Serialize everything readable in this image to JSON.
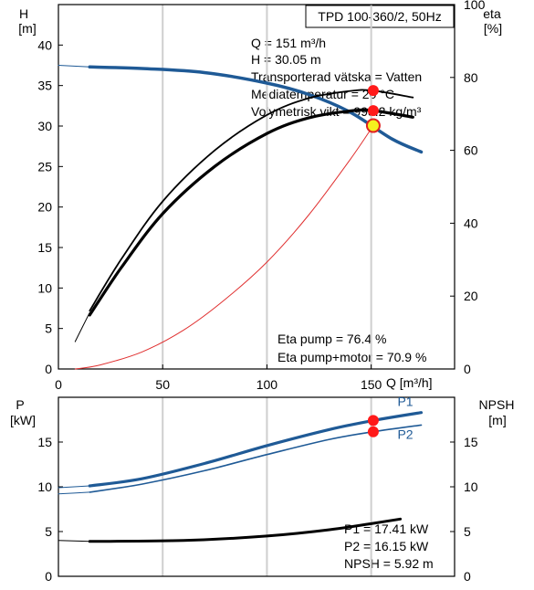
{
  "chart_data": [
    {
      "type": "line",
      "title": "TPD 100-360/2, 50Hz",
      "xlabel": "Q [m³/h]",
      "x_ticks": [
        "0",
        "50",
        "100",
        "150"
      ],
      "xlim": [
        0,
        190
      ],
      "left_axis": {
        "label": "H",
        "unit": "[m]",
        "ylim": [
          0,
          45
        ],
        "ticks": [
          "0",
          "5",
          "10",
          "15",
          "20",
          "25",
          "30",
          "35",
          "40"
        ]
      },
      "right_axis": {
        "label": "eta",
        "unit": "[%]",
        "ylim": [
          0,
          100
        ],
        "ticks": [
          "0",
          "20",
          "40",
          "60",
          "80",
          "100"
        ]
      },
      "grid": "vertical",
      "info_lines": [
        "Q = 151 m³/h",
        "H = 30.05 m",
        "Transporterad vätska = Vatten",
        "Mediatemperatur = 20 °C",
        "Volymetrisk vikt = 998.2 kg/m³"
      ],
      "eta_lines": [
        "Eta pump = 76.4 %",
        "Eta pump+motor = 70.9 %"
      ],
      "operating_point": {
        "Q": 151,
        "H": 30.05,
        "eta_pump": 76.4,
        "eta_pump_motor": 70.9
      },
      "series": [
        {
          "role": "H",
          "axis": "left",
          "color": "#1f5a96",
          "width": 3.5,
          "x": [
            15,
            40,
            70,
            100,
            120,
            140,
            160,
            174
          ],
          "y": [
            37.3,
            37.1,
            36.6,
            35.3,
            33.9,
            31.7,
            28.4,
            26.8
          ]
        },
        {
          "role": "H-extension",
          "axis": "left",
          "color": "#1f5a96",
          "width": 1,
          "x": [
            0,
            15
          ],
          "y": [
            37.5,
            37.3
          ]
        },
        {
          "role": "system-curve",
          "axis": "left",
          "color": "#e03030",
          "width": 1,
          "x": [
            8,
            20,
            40,
            60,
            80,
            100,
            120,
            140,
            151
          ],
          "y": [
            0,
            0.5,
            2.1,
            4.8,
            8.6,
            13.2,
            19.0,
            25.9,
            30.05
          ]
        },
        {
          "role": "eta-pump",
          "axis": "right",
          "color": "#000000",
          "width": 1.8,
          "x": [
            15,
            30,
            50,
            75,
            100,
            120,
            140,
            151,
            170
          ],
          "y": [
            16,
            30,
            46,
            60,
            69.7,
            74.3,
            76.3,
            76.4,
            74.5
          ]
        },
        {
          "role": "eta-pump+motor",
          "axis": "right",
          "color": "#000000",
          "width": 3.2,
          "x": [
            15,
            30,
            50,
            75,
            100,
            120,
            140,
            151,
            170
          ],
          "y": [
            14.8,
            27.7,
            42.6,
            55.6,
            64.6,
            68.9,
            70.8,
            70.9,
            69.1
          ]
        },
        {
          "role": "eta-extension",
          "axis": "right",
          "color": "#000000",
          "width": 1,
          "x": [
            8,
            15
          ],
          "y": [
            7.5,
            15.5
          ]
        }
      ]
    },
    {
      "type": "line",
      "xlim": [
        0,
        190
      ],
      "left_axis": {
        "label": "P",
        "unit": "[kW]",
        "ylim": [
          0,
          20
        ],
        "ticks": [
          "0",
          "5",
          "10",
          "15"
        ]
      },
      "right_axis": {
        "label": "NPSH",
        "unit": "[m]",
        "ylim": [
          0,
          20
        ],
        "ticks": [
          "0",
          "5",
          "10",
          "15"
        ]
      },
      "grid": "vertical",
      "info_lines": [
        "P1 = 17.41 kW",
        "P2 = 16.15 kW",
        "NPSH = 5.92 m"
      ],
      "series": [
        {
          "name": "P1",
          "axis": "left",
          "color": "#1f5a96",
          "width": 3.2,
          "x": [
            15,
            40,
            70,
            100,
            130,
            151,
            174
          ],
          "y": [
            10.1,
            10.9,
            12.6,
            14.6,
            16.4,
            17.41,
            18.3
          ]
        },
        {
          "name": "P2",
          "axis": "left",
          "color": "#1f5a96",
          "width": 1.6,
          "x": [
            15,
            40,
            70,
            100,
            130,
            151,
            174
          ],
          "y": [
            9.4,
            10.3,
            11.8,
            13.6,
            15.3,
            16.15,
            16.9
          ]
        },
        {
          "role": "P1-extension",
          "axis": "left",
          "color": "#1f5a96",
          "width": 1,
          "x": [
            0,
            15
          ],
          "y": [
            9.9,
            10.1
          ]
        },
        {
          "role": "P2-extension",
          "axis": "left",
          "color": "#1f5a96",
          "width": 1,
          "x": [
            0,
            15
          ],
          "y": [
            9.2,
            9.4
          ]
        },
        {
          "role": "NPSH",
          "axis": "right",
          "color": "#000000",
          "width": 3,
          "x": [
            15,
            60,
            100,
            130,
            151,
            164
          ],
          "y": [
            3.9,
            4.0,
            4.5,
            5.2,
            5.92,
            6.4
          ]
        },
        {
          "role": "NPSH-extension",
          "axis": "right",
          "color": "#000000",
          "width": 1,
          "x": [
            0,
            15
          ],
          "y": [
            4.0,
            3.9
          ]
        }
      ],
      "operating_point": {
        "Q": 151,
        "P1": 17.41,
        "P2": 16.15,
        "NPSH": 5.92
      }
    }
  ]
}
